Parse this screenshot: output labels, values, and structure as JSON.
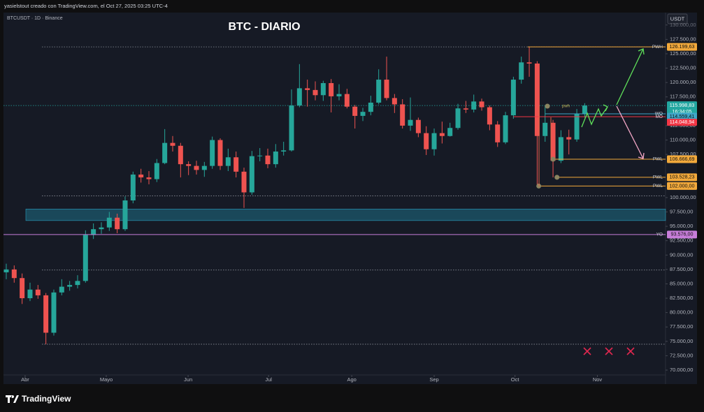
{
  "header": {
    "caption": "yasielstout creado con TradingView.com, el Oct 27, 2025 03:25 UTC-4",
    "brand": "TradingView"
  },
  "chart_data": {
    "type": "candlestick",
    "title": "BTC - DIARIO",
    "symbol": "BTCUSDT · 1D · Binance",
    "currency": "USDT",
    "up_color": "#26a69a",
    "down_color": "#ef5350",
    "open": [
      87000,
      87500,
      86000,
      82500,
      84000,
      83000,
      76500,
      83500,
      84500,
      84800,
      85500,
      93500,
      94500,
      94800,
      96500,
      94500,
      99500,
      104000,
      103500,
      103200,
      106000,
      109500,
      109000,
      105800,
      105500,
      104800,
      105500,
      110000,
      105500,
      107000,
      104500,
      100900,
      107200,
      107300,
      105800,
      108000,
      108200,
      116000,
      119000,
      118700,
      117800,
      119900,
      117600,
      118000,
      115800,
      114200,
      114900,
      116500,
      120500,
      117300,
      116200,
      112500,
      113500,
      111200,
      108400,
      111200,
      110700,
      112100,
      115500,
      115300,
      116700,
      115700,
      112700,
      109600,
      114300,
      120500,
      123500,
      123300,
      110700,
      113000,
      106400,
      110500,
      110100,
      114500
    ],
    "high": [
      88500,
      88200,
      86800,
      85200,
      84800,
      83400,
      84000,
      85800,
      85500,
      86500,
      94300,
      95500,
      95700,
      97500,
      97200,
      100200,
      104500,
      105000,
      104600,
      106700,
      111900,
      110700,
      109500,
      106300,
      106400,
      106200,
      110600,
      110300,
      108500,
      108000,
      105200,
      108100,
      108600,
      108500,
      109300,
      109700,
      118800,
      123200,
      120500,
      120200,
      120300,
      120600,
      119700,
      118900,
      116100,
      115600,
      117700,
      122300,
      124500,
      118000,
      117100,
      117400,
      113900,
      112400,
      112000,
      113200,
      113000,
      116300,
      116800,
      117900,
      117200,
      116000,
      113300,
      114900,
      121000,
      124500,
      126200,
      123700,
      115900,
      113500,
      111700,
      111800,
      115400,
      116400
    ],
    "low": [
      85800,
      85200,
      81500,
      82000,
      82400,
      74500,
      76000,
      83000,
      83800,
      84200,
      85200,
      92800,
      93700,
      94200,
      93800,
      94200,
      99000,
      102600,
      102300,
      102700,
      105800,
      108000,
      103500,
      103900,
      104000,
      103600,
      105000,
      104800,
      104600,
      103500,
      98200,
      100500,
      106300,
      105100,
      105200,
      107300,
      108000,
      115700,
      115800,
      116900,
      116800,
      114800,
      116900,
      115500,
      112000,
      113300,
      114300,
      116200,
      116900,
      114700,
      112000,
      111600,
      110500,
      107400,
      107300,
      109400,
      110600,
      111800,
      114700,
      114800,
      115100,
      111700,
      108800,
      109300,
      113700,
      119800,
      121000,
      102000,
      109700,
      103500,
      106000,
      107500,
      109700,
      113900
    ],
    "close": [
      87500,
      86000,
      82500,
      84000,
      83000,
      76500,
      83500,
      84500,
      84800,
      85500,
      93500,
      94500,
      94800,
      96500,
      94500,
      99500,
      104000,
      103500,
      103200,
      106000,
      109500,
      109000,
      105800,
      105500,
      104800,
      105500,
      110000,
      105500,
      107000,
      104500,
      100900,
      107200,
      107300,
      105800,
      108000,
      108200,
      116000,
      119000,
      118700,
      117800,
      119900,
      117600,
      118000,
      115800,
      114200,
      114900,
      116500,
      120500,
      117300,
      116200,
      112500,
      113500,
      111200,
      108400,
      111200,
      110700,
      112100,
      115500,
      115300,
      116700,
      115700,
      112700,
      109600,
      114300,
      120500,
      123500,
      123300,
      110700,
      113000,
      106400,
      110500,
      110100,
      114500,
      115999
    ],
    "xlim": [
      -0.35,
      83.2
    ],
    "xticks": [
      {
        "value": 2.38,
        "label": "Abr"
      },
      {
        "value": 12.62,
        "label": "Mayo"
      },
      {
        "value": 22.95,
        "label": "Jun"
      },
      {
        "value": 33.1,
        "label": "Jul"
      },
      {
        "value": 43.6,
        "label": "Ago"
      },
      {
        "value": 54.0,
        "label": "Sep"
      },
      {
        "value": 64.2,
        "label": "Oct"
      },
      {
        "value": 74.6,
        "label": "Nov"
      }
    ],
    "ylim": [
      68180,
      132160
    ],
    "yticks": [
      {
        "value": 130000,
        "label": "130.000,00"
      },
      {
        "value": 127500,
        "label": "127.500,00"
      },
      {
        "value": 125000,
        "label": "125.000,00"
      },
      {
        "value": 122500,
        "label": "122.500,00"
      },
      {
        "value": 120000,
        "label": "120.000,00"
      },
      {
        "value": 117500,
        "label": "117.500,00"
      },
      {
        "value": 112500,
        "label": "112.500,00"
      },
      {
        "value": 110000,
        "label": "110.000,00"
      },
      {
        "value": 107500,
        "label": "107.500,00"
      },
      {
        "value": 100000,
        "label": "100.000,00"
      },
      {
        "value": 97500,
        "label": "97.500,00"
      },
      {
        "value": 95000,
        "label": "95.000,00"
      },
      {
        "value": 92500,
        "label": "92.500,00"
      },
      {
        "value": 90000,
        "label": "90.000,00"
      },
      {
        "value": 87500,
        "label": "87.500,00"
      },
      {
        "value": 85000,
        "label": "85.000,00"
      },
      {
        "value": 82500,
        "label": "82.500,00"
      },
      {
        "value": 80000,
        "label": "80.000,00"
      },
      {
        "value": 77500,
        "label": "77.500,00"
      },
      {
        "value": 75000,
        "label": "75.000,00"
      },
      {
        "value": 72500,
        "label": "72.500,00"
      },
      {
        "value": 70000,
        "label": "70.000,00"
      }
    ],
    "grid": false,
    "current": {
      "value": 115998.83,
      "value_label": "115.998,83",
      "countdown": "16:34:05",
      "color": "#22a6a0"
    },
    "levels": [
      {
        "name": "PWH",
        "value": 126199.63,
        "value_label": "126.199,63",
        "color": "#f2a93b"
      },
      {
        "name": "WO",
        "value": 114559.41,
        "value_label": "114.559,41",
        "color": "#3fa7c9"
      },
      {
        "name": "MO",
        "value": 114048.94,
        "value_label": "114.048,94",
        "color": "#f23645"
      },
      {
        "name": "PWL",
        "value": 106666.69,
        "value_label": "106.666,69",
        "color": "#f2a93b"
      },
      {
        "name": "PWL",
        "value": 103528.23,
        "value_label": "103.528,23",
        "color": "#f2a93b"
      },
      {
        "name": "PWL",
        "value": 102000,
        "value_label": "102.000,00",
        "color": "#f2a93b"
      },
      {
        "name": "YO",
        "value": 93576,
        "value_label": "93.576,00",
        "color": "#c77dd9"
      }
    ],
    "dotted_levels": [
      126199.63,
      100300,
      87400,
      74500
    ],
    "zone": {
      "from": 96000,
      "to": 98000,
      "color": "#1f6f86"
    },
    "annotation": "pwh"
  }
}
